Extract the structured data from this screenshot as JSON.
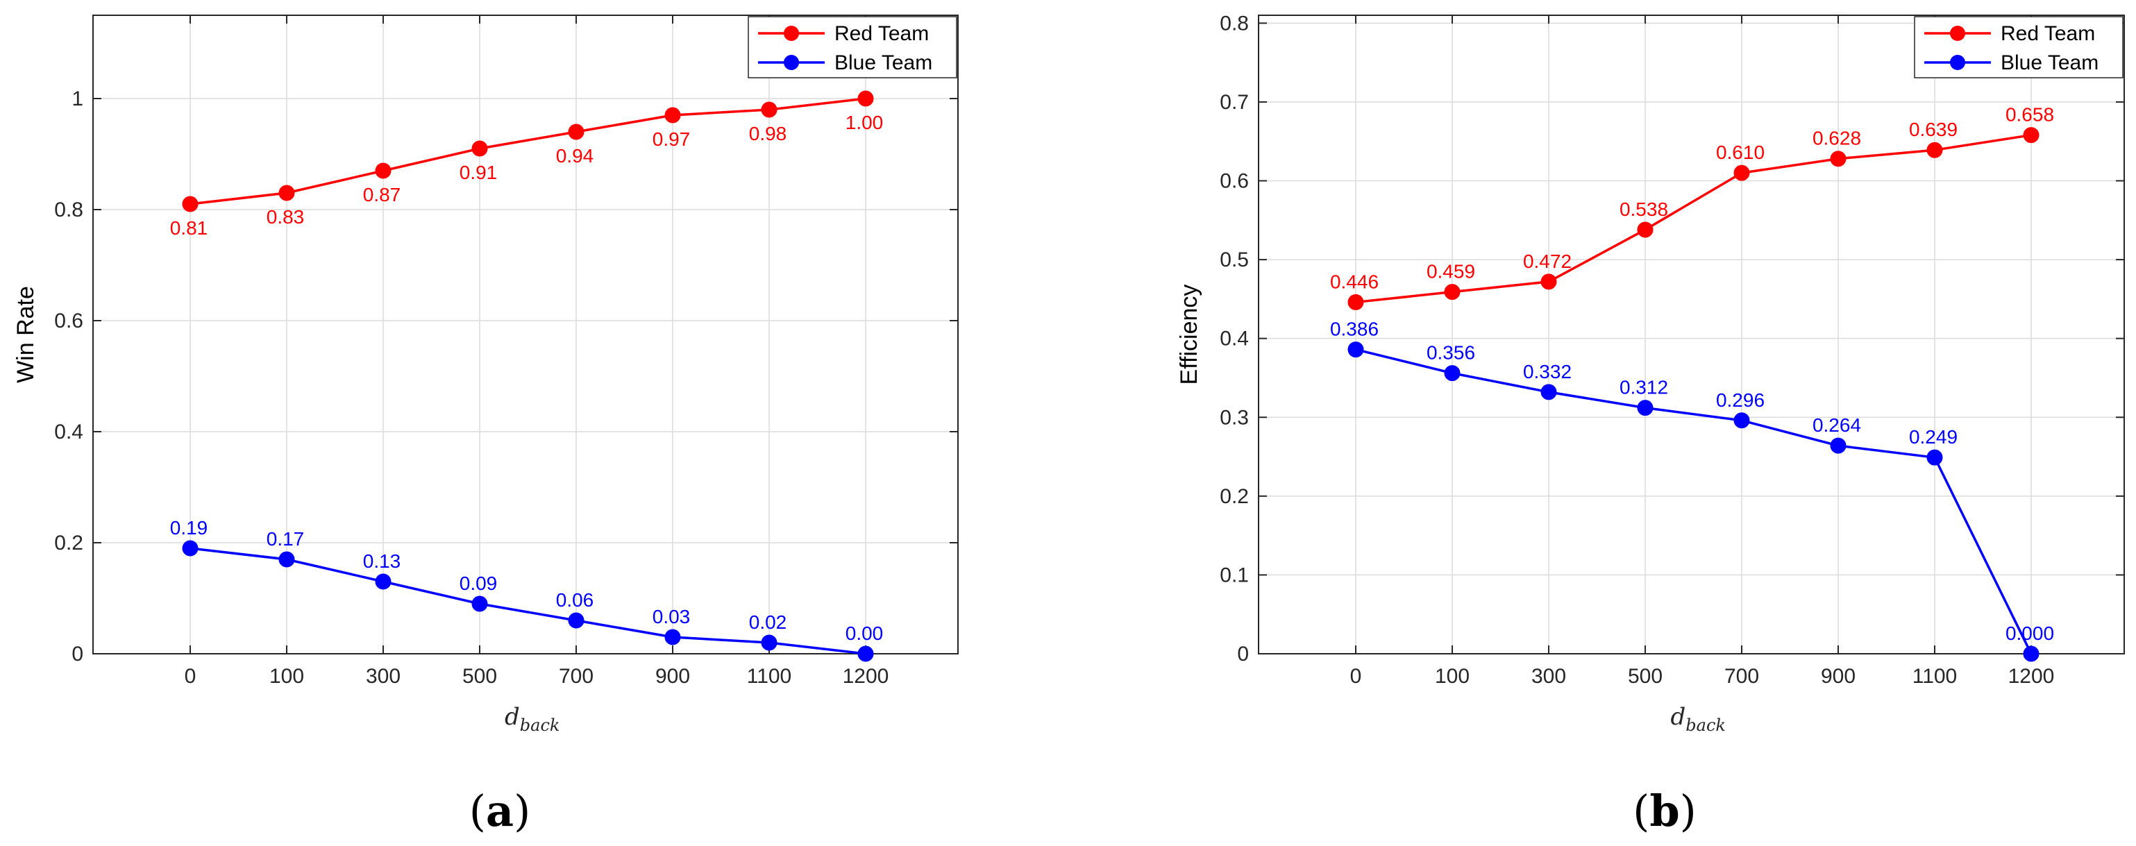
{
  "chart_data": [
    {
      "type": "line",
      "panel_label": "a",
      "categories": [
        "0",
        "100",
        "300",
        "500",
        "700",
        "900",
        "1100",
        "1200"
      ],
      "ylabel": "Win Rate",
      "xlabel_main": "d",
      "xlabel_sub": "back",
      "ylim": [
        0,
        1.15
      ],
      "yticks": [
        0,
        0.2,
        0.4,
        0.6,
        0.8,
        1
      ],
      "ytick_labels": [
        "0",
        "0.2",
        "0.4",
        "0.6",
        "0.8",
        "1"
      ],
      "grid": true,
      "legend_position": "top-right",
      "series": [
        {
          "name": "Red Team",
          "color": "#ff0000",
          "values": [
            0.81,
            0.83,
            0.87,
            0.91,
            0.94,
            0.97,
            0.98,
            1.0
          ],
          "labels": [
            "0.81",
            "0.83",
            "0.87",
            "0.91",
            "0.94",
            "0.97",
            "0.98",
            "1.00"
          ],
          "label_side": "below"
        },
        {
          "name": "Blue Team",
          "color": "#0000ff",
          "values": [
            0.19,
            0.17,
            0.13,
            0.09,
            0.06,
            0.03,
            0.02,
            0.0
          ],
          "labels": [
            "0.19",
            "0.17",
            "0.13",
            "0.09",
            "0.06",
            "0.03",
            "0.02",
            "0.00"
          ],
          "label_side": "above"
        }
      ]
    },
    {
      "type": "line",
      "panel_label": "b",
      "categories": [
        "0",
        "100",
        "300",
        "500",
        "700",
        "900",
        "1100",
        "1200"
      ],
      "ylabel": "Efficiency",
      "xlabel_main": "d",
      "xlabel_sub": "back",
      "ylim": [
        0,
        0.81
      ],
      "yticks": [
        0,
        0.1,
        0.2,
        0.3,
        0.4,
        0.5,
        0.6,
        0.7,
        0.8
      ],
      "ytick_labels": [
        "0",
        "0.1",
        "0.2",
        "0.3",
        "0.4",
        "0.5",
        "0.6",
        "0.7",
        "0.8"
      ],
      "grid": true,
      "legend_position": "top-right",
      "series": [
        {
          "name": "Red Team",
          "color": "#ff0000",
          "values": [
            0.446,
            0.459,
            0.472,
            0.538,
            0.61,
            0.628,
            0.639,
            0.658
          ],
          "labels": [
            "0.446",
            "0.459",
            "0.472",
            "0.538",
            "0.610",
            "0.628",
            "0.639",
            "0.658"
          ],
          "label_side": "above"
        },
        {
          "name": "Blue Team",
          "color": "#0000ff",
          "values": [
            0.386,
            0.356,
            0.332,
            0.312,
            0.296,
            0.264,
            0.249,
            0.0
          ],
          "labels": [
            "0.386",
            "0.356",
            "0.332",
            "0.312",
            "0.296",
            "0.264",
            "0.249",
            "0.000"
          ],
          "label_side": "above"
        }
      ]
    }
  ]
}
